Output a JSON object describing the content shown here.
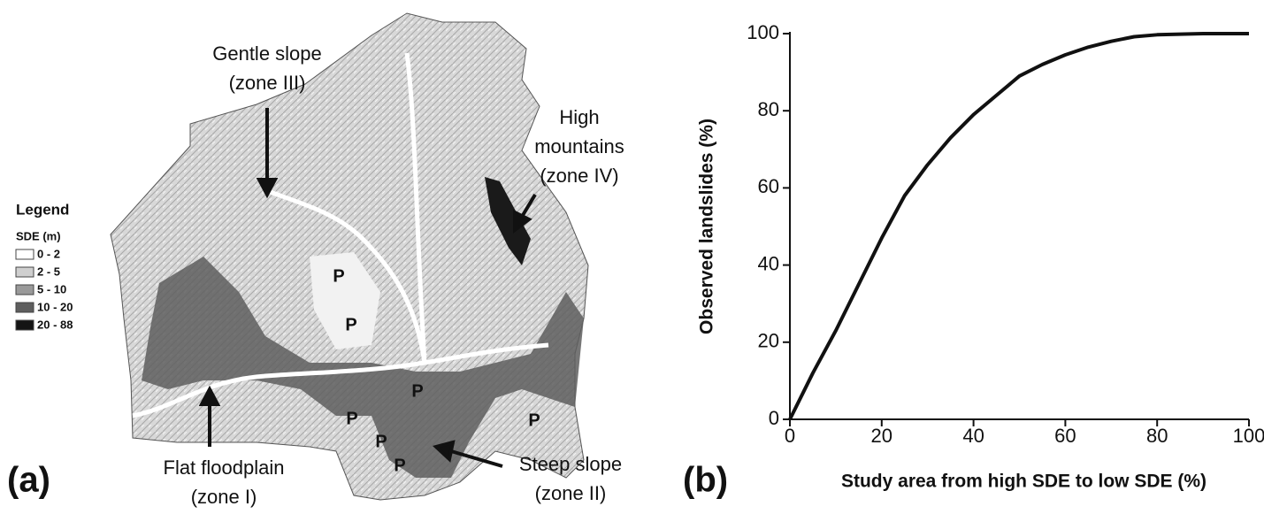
{
  "panel_labels": [
    "(a)",
    "(b)"
  ],
  "map": {
    "legend": {
      "title": "Legend",
      "subtitle": "SDE (m)",
      "items": [
        {
          "label": "0 - 2",
          "color": "#ffffff"
        },
        {
          "label": "2 - 5",
          "color": "#cfcfcf"
        },
        {
          "label": "5 - 10",
          "color": "#9a9a9a"
        },
        {
          "label": "10 - 20",
          "color": "#5e5e5e"
        },
        {
          "label": "20 - 88",
          "color": "#141414"
        }
      ]
    },
    "zones": [
      {
        "lines": [
          "Gentle slope",
          "(zone III)"
        ]
      },
      {
        "lines": [
          "High",
          "mountains",
          "(zone IV)"
        ]
      },
      {
        "lines": [
          "Flat floodplain",
          "(zone I)"
        ]
      },
      {
        "lines": [
          "Steep slope",
          "(zone II)"
        ]
      }
    ],
    "p_labels": [
      "P",
      "P",
      "P",
      "P",
      "P",
      "P",
      "P"
    ]
  },
  "chart_data": {
    "type": "line",
    "xlabel": "Study area from high SDE to low SDE (%)",
    "ylabel": "Observed landslides (%)",
    "x": [
      0,
      5,
      10,
      15,
      20,
      25,
      30,
      35,
      40,
      45,
      50,
      55,
      60,
      65,
      70,
      75,
      80,
      90,
      100
    ],
    "series": [
      {
        "name": "Observed landslides",
        "color": "#111111",
        "values": [
          0,
          12,
          23,
          35,
          47,
          58,
          66,
          73,
          79,
          84,
          89,
          92,
          94.5,
          96.5,
          98,
          99.2,
          99.7,
          100,
          100
        ]
      }
    ],
    "xlim": [
      0,
      100
    ],
    "ylim": [
      0,
      100
    ],
    "xticks": [
      0,
      20,
      40,
      60,
      80,
      100
    ],
    "yticks": [
      0,
      20,
      40,
      60,
      80,
      100
    ]
  }
}
